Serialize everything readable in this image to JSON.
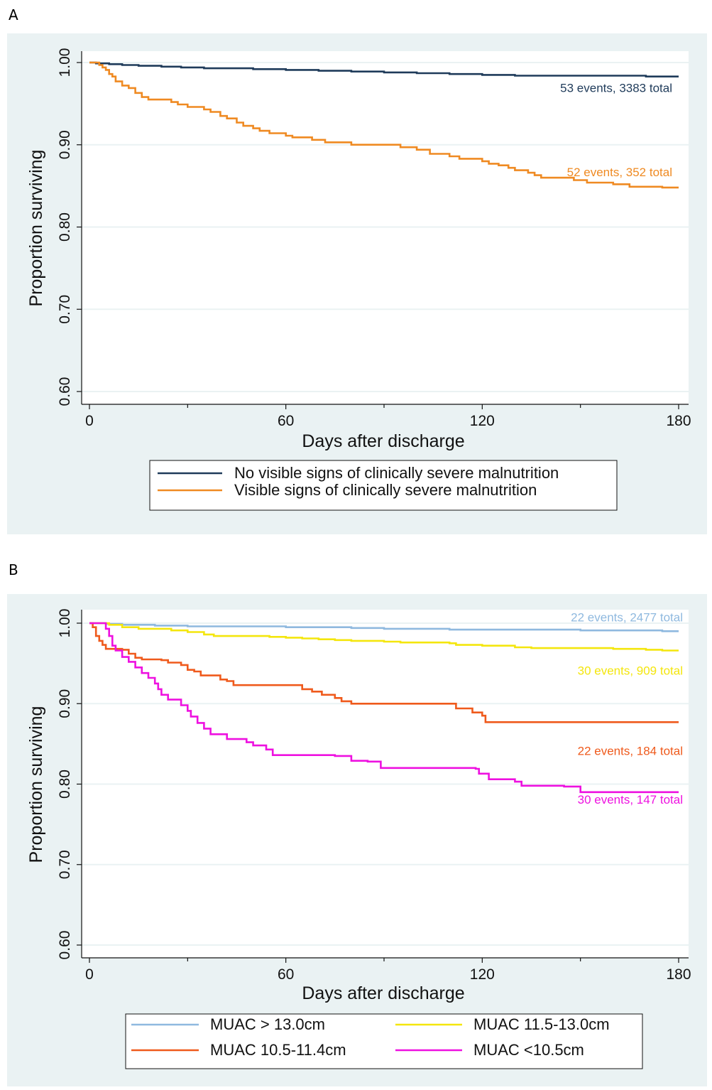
{
  "figure": {
    "panel_labels": [
      "A",
      "B"
    ],
    "colors": {
      "panel_bg": "#eaf2f3",
      "plot_bg": "#ffffff",
      "grid": "#eaf2f3"
    }
  },
  "chart_data": [
    {
      "type": "line",
      "panel": "A",
      "title": "",
      "xlabel": "Days after discharge",
      "ylabel": "Proportion surviving",
      "xlim": [
        0,
        180
      ],
      "ylim": [
        0.6,
        1.0
      ],
      "x_ticks": [
        0,
        60,
        120,
        180
      ],
      "x_tick_labels": [
        "0",
        "60",
        "120",
        "180"
      ],
      "y_ticks": [
        0.6,
        0.7,
        0.8,
        0.9,
        1.0
      ],
      "y_tick_labels": [
        "0.60",
        "0.70",
        "0.80",
        "0.90",
        "1.00"
      ],
      "grid": true,
      "legend_position": "bottom",
      "legend_columns": 1,
      "series": [
        {
          "name": "No visible signs of clinically severe malnutrition",
          "color": "#1f3b5a",
          "step": true,
          "points": [
            [
              0,
              1.0
            ],
            [
              2,
              0.999
            ],
            [
              6,
              0.998
            ],
            [
              10,
              0.997
            ],
            [
              15,
              0.996
            ],
            [
              22,
              0.995
            ],
            [
              28,
              0.994
            ],
            [
              35,
              0.993
            ],
            [
              50,
              0.992
            ],
            [
              60,
              0.991
            ],
            [
              70,
              0.99
            ],
            [
              80,
              0.989
            ],
            [
              90,
              0.988
            ],
            [
              100,
              0.987
            ],
            [
              110,
              0.986
            ],
            [
              120,
              0.985
            ],
            [
              130,
              0.984
            ],
            [
              150,
              0.984
            ],
            [
              165,
              0.984
            ],
            [
              170,
              0.983
            ],
            [
              180,
              0.983
            ]
          ],
          "annotation": "53 events, 3383 total",
          "annotation_y": 0.983
        },
        {
          "name": "Visible signs of clinically severe malnutrition",
          "color": "#ef8a22",
          "step": true,
          "points": [
            [
              0,
              1.0
            ],
            [
              3,
              0.997
            ],
            [
              4,
              0.994
            ],
            [
              5,
              0.991
            ],
            [
              6,
              0.986
            ],
            [
              7,
              0.983
            ],
            [
              8,
              0.977
            ],
            [
              10,
              0.972
            ],
            [
              12,
              0.969
            ],
            [
              14,
              0.963
            ],
            [
              16,
              0.958
            ],
            [
              18,
              0.955
            ],
            [
              25,
              0.952
            ],
            [
              27,
              0.949
            ],
            [
              30,
              0.946
            ],
            [
              35,
              0.943
            ],
            [
              37,
              0.94
            ],
            [
              40,
              0.935
            ],
            [
              42,
              0.932
            ],
            [
              45,
              0.927
            ],
            [
              47,
              0.923
            ],
            [
              50,
              0.92
            ],
            [
              52,
              0.917
            ],
            [
              55,
              0.914
            ],
            [
              60,
              0.911
            ],
            [
              62,
              0.909
            ],
            [
              68,
              0.906
            ],
            [
              72,
              0.903
            ],
            [
              80,
              0.9
            ],
            [
              95,
              0.897
            ],
            [
              100,
              0.894
            ],
            [
              104,
              0.889
            ],
            [
              110,
              0.886
            ],
            [
              113,
              0.883
            ],
            [
              120,
              0.88
            ],
            [
              122,
              0.877
            ],
            [
              125,
              0.875
            ],
            [
              128,
              0.872
            ],
            [
              130,
              0.869
            ],
            [
              134,
              0.866
            ],
            [
              136,
              0.863
            ],
            [
              138,
              0.86
            ],
            [
              148,
              0.857
            ],
            [
              152,
              0.854
            ],
            [
              160,
              0.852
            ],
            [
              165,
              0.849
            ],
            [
              170,
              0.849
            ],
            [
              175,
              0.848
            ],
            [
              180,
              0.848
            ]
          ],
          "annotation": "52 events, 352 total",
          "annotation_y": 0.848
        }
      ]
    },
    {
      "type": "line",
      "panel": "B",
      "title": "",
      "xlabel": "Days after discharge",
      "ylabel": "Proportion surviving",
      "xlim": [
        0,
        180
      ],
      "ylim": [
        0.6,
        1.0
      ],
      "x_ticks": [
        0,
        60,
        120,
        180
      ],
      "x_tick_labels": [
        "0",
        "60",
        "120",
        "180"
      ],
      "y_ticks": [
        0.6,
        0.7,
        0.8,
        0.9,
        1.0
      ],
      "y_tick_labels": [
        "0.60",
        "0.70",
        "0.80",
        "0.90",
        "1.00"
      ],
      "grid": true,
      "legend_position": "bottom",
      "legend_columns": 2,
      "series": [
        {
          "name": "MUAC > 13.0cm",
          "color": "#8fb9df",
          "step": true,
          "points": [
            [
              0,
              1.0
            ],
            [
              5,
              0.999
            ],
            [
              10,
              0.998
            ],
            [
              20,
              0.997
            ],
            [
              30,
              0.996
            ],
            [
              50,
              0.996
            ],
            [
              60,
              0.995
            ],
            [
              80,
              0.994
            ],
            [
              90,
              0.993
            ],
            [
              100,
              0.993
            ],
            [
              110,
              0.992
            ],
            [
              130,
              0.992
            ],
            [
              150,
              0.991
            ],
            [
              170,
              0.991
            ],
            [
              175,
              0.99
            ],
            [
              180,
              0.99
            ]
          ],
          "annotation": "22 events, 2477 total",
          "annotation_y": 0.99
        },
        {
          "name": "MUAC 11.5-13.0cm",
          "color": "#f4e60d",
          "step": true,
          "points": [
            [
              0,
              1.0
            ],
            [
              6,
              0.998
            ],
            [
              10,
              0.995
            ],
            [
              15,
              0.993
            ],
            [
              25,
              0.991
            ],
            [
              30,
              0.989
            ],
            [
              35,
              0.986
            ],
            [
              38,
              0.984
            ],
            [
              55,
              0.983
            ],
            [
              60,
              0.982
            ],
            [
              65,
              0.981
            ],
            [
              70,
              0.98
            ],
            [
              75,
              0.979
            ],
            [
              80,
              0.978
            ],
            [
              90,
              0.977
            ],
            [
              95,
              0.976
            ],
            [
              110,
              0.975
            ],
            [
              112,
              0.973
            ],
            [
              120,
              0.972
            ],
            [
              130,
              0.97
            ],
            [
              135,
              0.969
            ],
            [
              160,
              0.968
            ],
            [
              170,
              0.967
            ],
            [
              175,
              0.966
            ],
            [
              180,
              0.966
            ]
          ],
          "annotation": "30 events, 909 total",
          "annotation_y": 0.966
        },
        {
          "name": "MUAC 10.5-11.4cm",
          "color": "#ef5a1c",
          "step": true,
          "points": [
            [
              0,
              1.0
            ],
            [
              1,
              0.995
            ],
            [
              2,
              0.984
            ],
            [
              3,
              0.978
            ],
            [
              4,
              0.973
            ],
            [
              5,
              0.968
            ],
            [
              10,
              0.967
            ],
            [
              12,
              0.962
            ],
            [
              14,
              0.957
            ],
            [
              16,
              0.955
            ],
            [
              22,
              0.954
            ],
            [
              24,
              0.951
            ],
            [
              28,
              0.948
            ],
            [
              30,
              0.942
            ],
            [
              32,
              0.94
            ],
            [
              34,
              0.935
            ],
            [
              40,
              0.93
            ],
            [
              42,
              0.928
            ],
            [
              44,
              0.923
            ],
            [
              65,
              0.918
            ],
            [
              68,
              0.915
            ],
            [
              71,
              0.911
            ],
            [
              75,
              0.907
            ],
            [
              77,
              0.903
            ],
            [
              80,
              0.9
            ],
            [
              88,
              0.9
            ],
            [
              95,
              0.9
            ],
            [
              110,
              0.9
            ],
            [
              112,
              0.894
            ],
            [
              115,
              0.894
            ],
            [
              117,
              0.889
            ],
            [
              120,
              0.885
            ],
            [
              121,
              0.877
            ],
            [
              130,
              0.877
            ],
            [
              145,
              0.877
            ],
            [
              175,
              0.877
            ],
            [
              180,
              0.877
            ]
          ],
          "annotation": "22 events, 184 total",
          "annotation_y": 0.877
        },
        {
          "name": "MUAC <10.5cm",
          "color": "#ee11e0",
          "step": true,
          "points": [
            [
              0,
              1.0
            ],
            [
              5,
              0.993
            ],
            [
              6,
              0.984
            ],
            [
              7,
              0.972
            ],
            [
              8,
              0.966
            ],
            [
              10,
              0.958
            ],
            [
              12,
              0.952
            ],
            [
              14,
              0.945
            ],
            [
              16,
              0.938
            ],
            [
              18,
              0.932
            ],
            [
              20,
              0.925
            ],
            [
              21,
              0.918
            ],
            [
              22,
              0.911
            ],
            [
              24,
              0.905
            ],
            [
              28,
              0.898
            ],
            [
              30,
              0.891
            ],
            [
              31,
              0.884
            ],
            [
              33,
              0.876
            ],
            [
              35,
              0.869
            ],
            [
              37,
              0.862
            ],
            [
              42,
              0.856
            ],
            [
              48,
              0.852
            ],
            [
              50,
              0.848
            ],
            [
              54,
              0.843
            ],
            [
              56,
              0.836
            ],
            [
              70,
              0.836
            ],
            [
              75,
              0.835
            ],
            [
              80,
              0.829
            ],
            [
              85,
              0.828
            ],
            [
              89,
              0.82
            ],
            [
              100,
              0.82
            ],
            [
              110,
              0.82
            ],
            [
              118,
              0.819
            ],
            [
              119,
              0.813
            ],
            [
              122,
              0.806
            ],
            [
              130,
              0.803
            ],
            [
              132,
              0.798
            ],
            [
              145,
              0.797
            ],
            [
              150,
              0.79
            ],
            [
              160,
              0.79
            ],
            [
              175,
              0.79
            ],
            [
              180,
              0.79
            ]
          ],
          "annotation": "30 events, 147 total",
          "annotation_y": 0.79
        }
      ]
    }
  ]
}
